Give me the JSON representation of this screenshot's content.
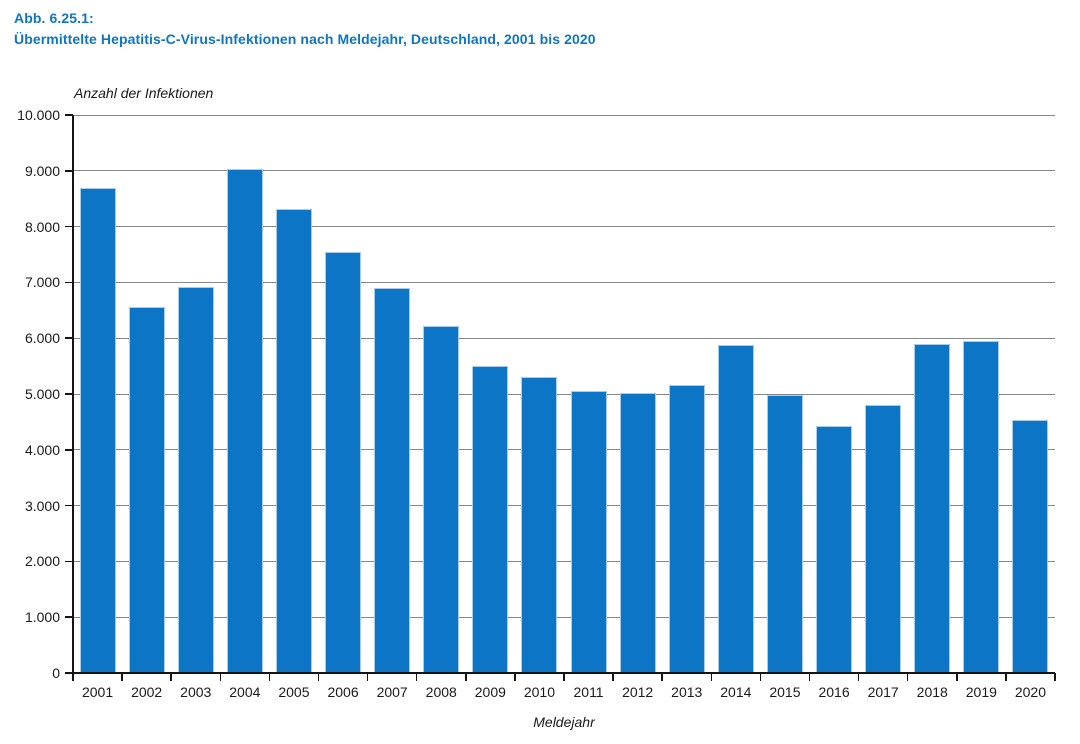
{
  "header": {
    "label": "Abb. 6.25.1:",
    "title": "Übermittelte Hepatitis-C-Virus-Infektionen nach Meldejahr, Deutschland, 2001 bis 2020",
    "color": "#0e76c6"
  },
  "chart_data": {
    "type": "bar",
    "title": "Übermittelte Hepatitis-C-Virus-Infektionen nach Meldejahr, Deutschland, 2001 bis 2020",
    "xlabel": "Meldejahr",
    "ylabel": "Anzahl der Infektionen",
    "categories": [
      "2001",
      "2002",
      "2003",
      "2004",
      "2005",
      "2006",
      "2007",
      "2008",
      "2009",
      "2010",
      "2011",
      "2012",
      "2013",
      "2014",
      "2015",
      "2016",
      "2017",
      "2018",
      "2019",
      "2020"
    ],
    "values": [
      8697,
      6565,
      6922,
      9030,
      8308,
      7541,
      6905,
      6224,
      5506,
      5301,
      5047,
      5012,
      5169,
      5883,
      4991,
      4434,
      4810,
      5890,
      5947,
      4542
    ],
    "ylim": [
      0,
      10000
    ],
    "ytick_step": 1000,
    "ytick_labels": [
      "0",
      "1.000",
      "2.000",
      "3.000",
      "4.000",
      "5.000",
      "6.000",
      "7.000",
      "8.000",
      "9.000",
      "10.000"
    ],
    "grid": true,
    "legend_position": "none",
    "bar_color": "#0c75c5",
    "bar_edge_color": "#a9cce9",
    "gridline_color": "#878787",
    "axis_color": "#151515"
  }
}
